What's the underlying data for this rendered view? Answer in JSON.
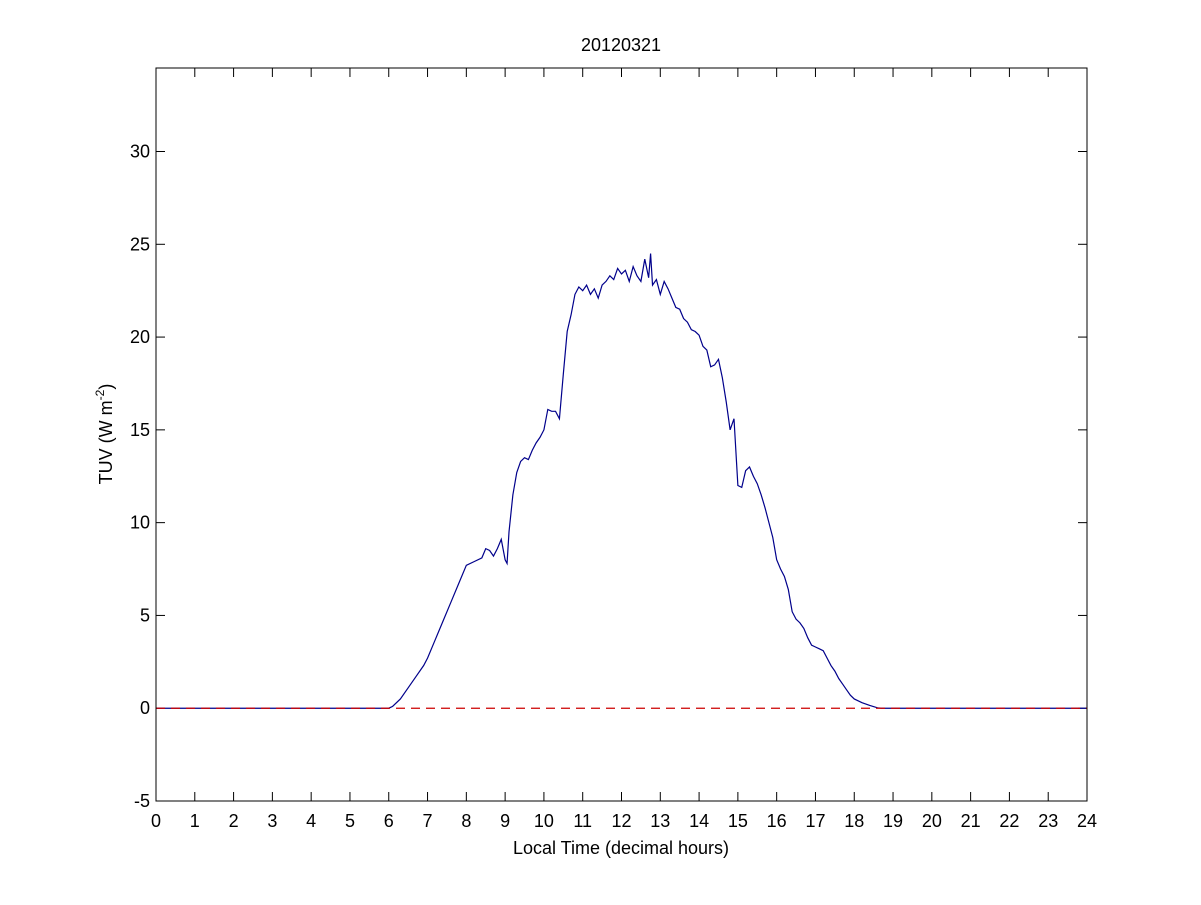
{
  "chart_data": {
    "type": "line",
    "title": "20120321",
    "xlabel": "Local Time (decimal hours)",
    "ylabel": "TUV (W m",
    "ylabel_superscript": "-2",
    "ylabel_suffix": ")",
    "xlim": [
      0,
      24
    ],
    "ylim": [
      -5,
      34.5
    ],
    "xticks": [
      0,
      1,
      2,
      3,
      4,
      5,
      6,
      7,
      8,
      9,
      10,
      11,
      12,
      13,
      14,
      15,
      16,
      17,
      18,
      19,
      20,
      21,
      22,
      23,
      24
    ],
    "yticks": [
      -5,
      0,
      5,
      10,
      15,
      20,
      25,
      30
    ],
    "grid": false,
    "colors": {
      "series": "#00008b",
      "baseline": "#cc0000"
    },
    "series": [
      {
        "style": "solid",
        "x": [
          0,
          6.0,
          6.1,
          6.3,
          6.5,
          6.7,
          6.9,
          7.0,
          7.2,
          7.4,
          7.6,
          7.8,
          8.0,
          8.2,
          8.4,
          8.5,
          8.6,
          8.7,
          8.8,
          8.9,
          9.0,
          9.05,
          9.1,
          9.2,
          9.3,
          9.4,
          9.5,
          9.6,
          9.7,
          9.8,
          9.9,
          10.0,
          10.1,
          10.2,
          10.3,
          10.4,
          10.5,
          10.6,
          10.7,
          10.8,
          10.9,
          11.0,
          11.1,
          11.2,
          11.3,
          11.4,
          11.5,
          11.6,
          11.7,
          11.8,
          11.9,
          12.0,
          12.1,
          12.2,
          12.3,
          12.4,
          12.5,
          12.6,
          12.7,
          12.75,
          12.8,
          12.9,
          13.0,
          13.1,
          13.2,
          13.3,
          13.4,
          13.5,
          13.6,
          13.7,
          13.8,
          13.9,
          14.0,
          14.1,
          14.2,
          14.3,
          14.4,
          14.5,
          14.6,
          14.7,
          14.8,
          14.9,
          15.0,
          15.1,
          15.2,
          15.3,
          15.4,
          15.5,
          15.6,
          15.7,
          15.8,
          15.9,
          16.0,
          16.1,
          16.2,
          16.3,
          16.4,
          16.5,
          16.6,
          16.7,
          16.8,
          16.9,
          17.0,
          17.1,
          17.2,
          17.3,
          17.4,
          17.5,
          17.6,
          17.7,
          17.8,
          17.9,
          18.0,
          18.2,
          18.4,
          18.6,
          18.7,
          24
        ],
        "y": [
          0,
          0,
          0.1,
          0.5,
          1.1,
          1.7,
          2.3,
          2.7,
          3.7,
          4.7,
          5.7,
          6.7,
          7.7,
          7.9,
          8.1,
          8.6,
          8.5,
          8.2,
          8.6,
          9.1,
          8.0,
          7.8,
          9.5,
          11.5,
          12.7,
          13.3,
          13.5,
          13.4,
          13.9,
          14.3,
          14.6,
          15.0,
          16.1,
          16.0,
          16.0,
          15.6,
          18.0,
          20.3,
          21.2,
          22.3,
          22.7,
          22.5,
          22.8,
          22.3,
          22.6,
          22.1,
          22.8,
          23.0,
          23.3,
          23.1,
          23.7,
          23.4,
          23.6,
          23.0,
          23.8,
          23.3,
          23.0,
          24.2,
          23.2,
          24.5,
          22.8,
          23.1,
          22.3,
          23.0,
          22.6,
          22.1,
          21.6,
          21.5,
          21.0,
          20.8,
          20.4,
          20.3,
          20.1,
          19.5,
          19.3,
          18.4,
          18.5,
          18.8,
          17.8,
          16.5,
          15.0,
          15.6,
          12.0,
          11.9,
          12.8,
          13.0,
          12.5,
          12.1,
          11.5,
          10.8,
          10.0,
          9.2,
          8.0,
          7.5,
          7.1,
          6.4,
          5.2,
          4.8,
          4.6,
          4.3,
          3.8,
          3.4,
          3.3,
          3.2,
          3.1,
          2.7,
          2.3,
          2.0,
          1.6,
          1.3,
          1.0,
          0.7,
          0.5,
          0.3,
          0.15,
          0.02,
          0,
          0
        ]
      },
      {
        "style": "dashed",
        "x": [
          0,
          24
        ],
        "y": [
          0,
          0
        ]
      }
    ]
  }
}
